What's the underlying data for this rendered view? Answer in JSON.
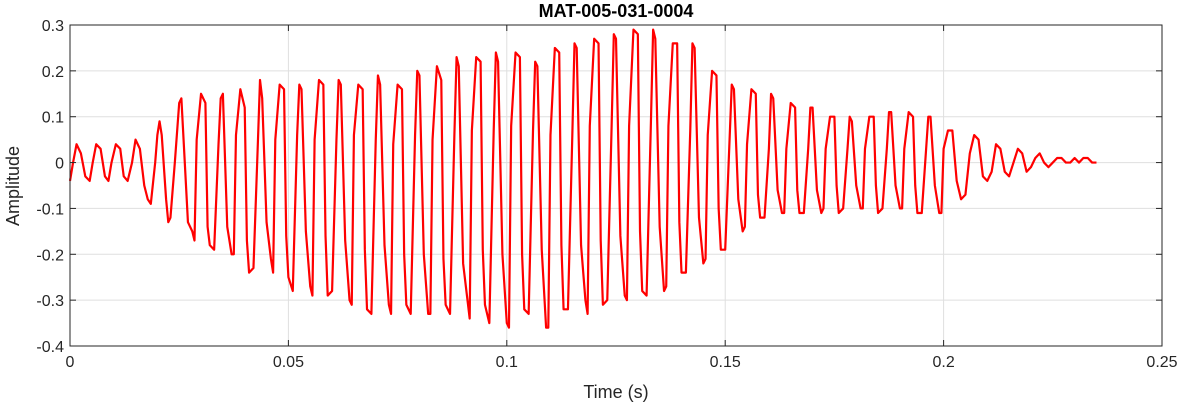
{
  "chart_data": {
    "type": "line",
    "title": "MAT-005-031-0004",
    "xlabel": "Time (s)",
    "ylabel": "Amplitude",
    "xlim": [
      0,
      0.25
    ],
    "ylim": [
      -0.4,
      0.3
    ],
    "grid": true,
    "x_ticks": [
      0,
      0.05,
      0.1,
      0.15,
      0.2,
      0.25
    ],
    "x_tick_labels": [
      "0",
      "0.05",
      "0.1",
      "0.15",
      "0.2",
      "0.25"
    ],
    "y_ticks": [
      -0.4,
      -0.3,
      -0.2,
      -0.1,
      0,
      0.1,
      0.2,
      0.3
    ],
    "y_tick_labels": [
      "-0.4",
      "-0.3",
      "-0.2",
      "-0.1",
      "0",
      "0.1",
      "0.2",
      "0.3"
    ],
    "series": [
      {
        "color": "#ff0000",
        "x": [
          0,
          0.0007,
          0.0015,
          0.0025,
          0.0035,
          0.0045,
          0.0052,
          0.006,
          0.007,
          0.008,
          0.0088,
          0.0095,
          0.0105,
          0.0115,
          0.0123,
          0.0132,
          0.0142,
          0.015,
          0.016,
          0.017,
          0.0178,
          0.0185,
          0.0195,
          0.02,
          0.0205,
          0.021,
          0.022,
          0.0225,
          0.023,
          0.024,
          0.025,
          0.0255,
          0.026,
          0.027,
          0.028,
          0.0285,
          0.029,
          0.03,
          0.031,
          0.0315,
          0.032,
          0.033,
          0.034,
          0.0345,
          0.035,
          0.036,
          0.037,
          0.0375,
          0.038,
          0.039,
          0.04,
          0.0405,
          0.041,
          0.042,
          0.043,
          0.0435,
          0.044,
          0.045,
          0.046,
          0.0465,
          0.047,
          0.048,
          0.049,
          0.0495,
          0.05,
          0.051,
          0.052,
          0.0525,
          0.053,
          0.054,
          0.055,
          0.0555,
          0.056,
          0.057,
          0.058,
          0.0585,
          0.059,
          0.06,
          0.061,
          0.0615,
          0.062,
          0.063,
          0.064,
          0.0645,
          0.065,
          0.066,
          0.067,
          0.0675,
          0.068,
          0.069,
          0.07,
          0.0705,
          0.071,
          0.072,
          0.073,
          0.0735,
          0.074,
          0.075,
          0.076,
          0.0765,
          0.077,
          0.078,
          0.079,
          0.0795,
          0.08,
          0.081,
          0.082,
          0.0825,
          0.083,
          0.084,
          0.085,
          0.0855,
          0.086,
          0.087,
          0.088,
          0.0885,
          0.089,
          0.09,
          0.091,
          0.0915,
          0.092,
          0.093,
          0.094,
          0.0945,
          0.095,
          0.096,
          0.097,
          0.0975,
          0.098,
          0.099,
          0.1,
          0.1005,
          0.101,
          0.102,
          0.103,
          0.1035,
          0.104,
          0.105,
          0.106,
          0.1065,
          0.107,
          0.108,
          0.109,
          0.1095,
          0.11,
          0.111,
          0.112,
          0.1125,
          0.113,
          0.114,
          0.115,
          0.1155,
          0.116,
          0.117,
          0.118,
          0.1185,
          0.119,
          0.12,
          0.121,
          0.1215,
          0.122,
          0.123,
          0.124,
          0.1245,
          0.125,
          0.126,
          0.127,
          0.1275,
          0.128,
          0.129,
          0.13,
          0.1305,
          0.131,
          0.132,
          0.133,
          0.1335,
          0.134,
          0.135,
          0.136,
          0.1365,
          0.137,
          0.138,
          0.139,
          0.1395,
          0.14,
          0.141,
          0.142,
          0.1425,
          0.143,
          0.144,
          0.145,
          0.1455,
          0.146,
          0.147,
          0.148,
          0.1485,
          0.149,
          0.15,
          0.151,
          0.1515,
          0.152,
          0.153,
          0.154,
          0.1545,
          0.155,
          0.156,
          0.157,
          0.1575,
          0.158,
          0.159,
          0.16,
          0.1605,
          0.161,
          0.162,
          0.163,
          0.1635,
          0.164,
          0.165,
          0.166,
          0.1665,
          0.167,
          0.168,
          0.169,
          0.1695,
          0.17,
          0.171,
          0.172,
          0.1725,
          0.173,
          0.174,
          0.175,
          0.1755,
          0.176,
          0.177,
          0.178,
          0.1785,
          0.179,
          0.18,
          0.181,
          0.1815,
          0.182,
          0.183,
          0.184,
          0.1845,
          0.185,
          0.186,
          0.187,
          0.1875,
          0.188,
          0.189,
          0.19,
          0.1905,
          0.191,
          0.192,
          0.193,
          0.1935,
          0.194,
          0.195,
          0.196,
          0.1965,
          0.197,
          0.198,
          0.199,
          0.1995,
          0.2,
          0.201,
          0.202,
          0.203,
          0.204,
          0.205,
          0.206,
          0.207,
          0.208,
          0.209,
          0.21,
          0.211,
          0.212,
          0.213,
          0.214,
          0.215,
          0.216,
          0.217,
          0.218,
          0.219,
          0.22,
          0.221,
          0.222,
          0.223,
          0.224,
          0.225,
          0.226,
          0.227,
          0.228,
          0.229,
          0.23,
          0.231,
          0.232,
          0.233,
          0.234,
          0.235
        ],
        "y": [
          -0.04,
          0.0,
          0.04,
          0.02,
          -0.03,
          -0.04,
          0.0,
          0.04,
          0.03,
          -0.03,
          -0.04,
          0.0,
          0.04,
          0.03,
          -0.03,
          -0.04,
          0.0,
          0.05,
          0.03,
          -0.05,
          -0.08,
          -0.09,
          0.0,
          0.06,
          0.09,
          0.06,
          -0.08,
          -0.13,
          -0.12,
          0.0,
          0.13,
          0.14,
          0.05,
          -0.13,
          -0.15,
          -0.17,
          0.05,
          0.15,
          0.13,
          -0.14,
          -0.18,
          -0.19,
          0.04,
          0.14,
          0.15,
          -0.14,
          -0.2,
          -0.2,
          0.06,
          0.16,
          0.12,
          -0.17,
          -0.24,
          -0.23,
          0.04,
          0.18,
          0.14,
          -0.13,
          -0.21,
          -0.24,
          0.05,
          0.17,
          0.16,
          -0.16,
          -0.25,
          -0.28,
          0.06,
          0.17,
          0.16,
          -0.15,
          -0.27,
          -0.29,
          0.05,
          0.18,
          0.17,
          -0.16,
          -0.29,
          -0.28,
          0.05,
          0.18,
          0.17,
          -0.17,
          -0.3,
          -0.31,
          0.06,
          0.17,
          0.16,
          -0.19,
          -0.32,
          -0.33,
          0.05,
          0.19,
          0.17,
          -0.18,
          -0.31,
          -0.33,
          0.04,
          0.17,
          0.16,
          -0.2,
          -0.31,
          -0.33,
          0.06,
          0.2,
          0.19,
          -0.2,
          -0.33,
          -0.33,
          0.05,
          0.21,
          0.18,
          -0.21,
          -0.31,
          -0.33,
          0.06,
          0.23,
          0.21,
          -0.22,
          -0.3,
          -0.34,
          0.07,
          0.23,
          0.22,
          -0.19,
          -0.31,
          -0.35,
          0.07,
          0.24,
          0.22,
          -0.2,
          -0.35,
          -0.36,
          0.08,
          0.24,
          0.23,
          -0.2,
          -0.32,
          -0.33,
          0.07,
          0.22,
          0.21,
          -0.19,
          -0.36,
          -0.36,
          0.06,
          0.25,
          0.24,
          -0.18,
          -0.32,
          -0.32,
          0.06,
          0.26,
          0.25,
          -0.18,
          -0.3,
          -0.33,
          0.08,
          0.27,
          0.26,
          -0.17,
          -0.31,
          -0.3,
          0.08,
          0.28,
          0.27,
          -0.16,
          -0.29,
          -0.3,
          0.08,
          0.29,
          0.28,
          -0.15,
          -0.28,
          -0.29,
          0.09,
          0.29,
          0.27,
          -0.14,
          -0.28,
          -0.27,
          0.08,
          0.26,
          0.26,
          -0.13,
          -0.24,
          -0.24,
          0.07,
          0.26,
          0.25,
          -0.12,
          -0.22,
          -0.21,
          0.06,
          0.2,
          0.19,
          -0.1,
          -0.19,
          -0.19,
          0.05,
          0.17,
          0.16,
          -0.08,
          -0.15,
          -0.14,
          0.04,
          0.16,
          0.15,
          -0.07,
          -0.12,
          -0.12,
          0.03,
          0.15,
          0.14,
          -0.06,
          -0.11,
          -0.11,
          0.03,
          0.13,
          0.12,
          -0.06,
          -0.11,
          -0.11,
          0.03,
          0.12,
          0.12,
          -0.06,
          -0.11,
          -0.1,
          0.03,
          0.1,
          0.1,
          -0.05,
          -0.11,
          -0.1,
          0.03,
          0.1,
          0.09,
          -0.05,
          -0.1,
          -0.1,
          0.03,
          0.1,
          0.1,
          -0.05,
          -0.11,
          -0.1,
          0.03,
          0.11,
          0.11,
          -0.05,
          -0.1,
          -0.1,
          0.03,
          0.11,
          0.1,
          -0.05,
          -0.11,
          -0.11,
          0.03,
          0.1,
          0.1,
          -0.05,
          -0.11,
          -0.11,
          0.03,
          0.07,
          0.07,
          -0.04,
          -0.08,
          -0.07,
          0.02,
          0.06,
          0.05,
          -0.03,
          -0.04,
          -0.02,
          0.04,
          0.03,
          -0.02,
          -0.03,
          0.0,
          0.03,
          0.02,
          -0.02,
          -0.01,
          0.01,
          0.02,
          0.0,
          -0.01,
          0.0,
          0.01,
          0.01,
          0.0,
          0.0,
          0.01,
          0.0,
          0.01,
          0.01,
          0.0,
          0.0
        ]
      }
    ]
  }
}
